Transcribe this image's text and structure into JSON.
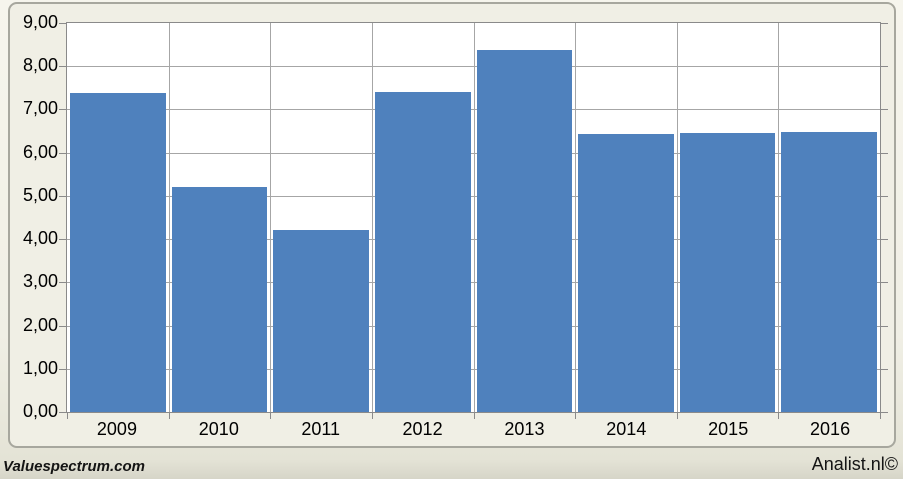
{
  "footer": {
    "left_brand": "Valuespectrum.com",
    "right_brand": "Analist.nl©"
  },
  "chart_data": {
    "type": "bar",
    "title": "",
    "xlabel": "",
    "ylabel": "",
    "categories": [
      "2009",
      "2010",
      "2011",
      "2012",
      "2013",
      "2014",
      "2015",
      "2016"
    ],
    "values": [
      7.37,
      5.2,
      4.2,
      7.41,
      8.38,
      6.44,
      6.46,
      6.49
    ],
    "ylim": [
      0,
      9
    ],
    "ytick_step": 1,
    "ytick_labels_top_to_bottom": [
      "9,00",
      "8,00",
      "7,00",
      "6,00",
      "5,00",
      "4,00",
      "3,00",
      "2,00",
      "1,00",
      "0,00"
    ],
    "decimal_format": "comma",
    "grid": true,
    "legend": "none",
    "bar_color": "#4F81BD",
    "gridline_color": "#A6A6A6",
    "axis_line_color": "#8A8A8A",
    "plot_background": "#FFFFFF",
    "chart_background": "#F0EFE5",
    "tick_label_color": "#000000"
  }
}
